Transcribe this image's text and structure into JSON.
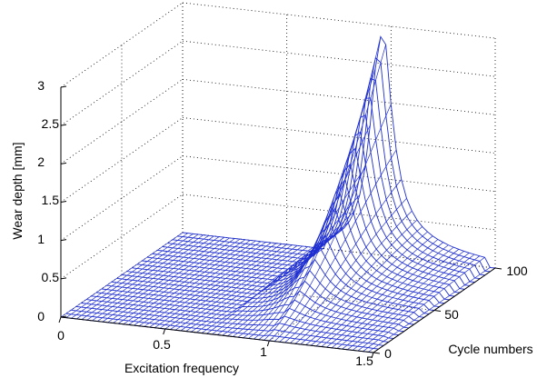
{
  "chart_data": {
    "type": "surface",
    "xlabel": "Excitation frequency",
    "ylabel": "Cycle numbers",
    "zlabel": "Wear depth [mm]",
    "x_ticks": [
      "0",
      "0.5",
      "1",
      "1.5"
    ],
    "y_ticks": [
      "0",
      "50",
      "100"
    ],
    "z_ticks": [
      "0",
      "0.5",
      "1",
      "1.5",
      "2",
      "2.5",
      "3"
    ],
    "xlim": [
      0,
      1.5
    ],
    "ylim": [
      0,
      100
    ],
    "zlim": [
      0,
      3
    ],
    "grid": true,
    "mesh_color": "#1f2fd0",
    "peak": {
      "x": 0.95,
      "y": 100,
      "z": 2.85
    },
    "surface_profile": {
      "note_free": true,
      "resonance_center_x": 0.95,
      "flat_level": 0,
      "max_at_100_cycles": 2.85
    }
  }
}
